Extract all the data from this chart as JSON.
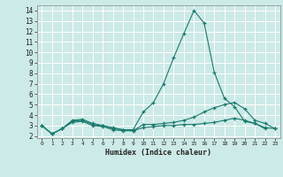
{
  "xlabel": "Humidex (Indice chaleur)",
  "ylabel": "",
  "xlim": [
    -0.5,
    23.5
  ],
  "ylim": [
    1.8,
    14.5
  ],
  "bg_color": "#cceae7",
  "grid_color": "#ffffff",
  "line_color": "#1a7a6e",
  "lines": [
    {
      "x": [
        0,
        1,
        2,
        3,
        4,
        5,
        6,
        7,
        8,
        9,
        10,
        11,
        12,
        13,
        14,
        15,
        16,
        17,
        18,
        19,
        20,
        21,
        22
      ],
      "y": [
        3.0,
        2.2,
        2.7,
        3.5,
        3.6,
        3.2,
        3.0,
        2.8,
        2.6,
        2.6,
        4.3,
        5.2,
        7.0,
        9.5,
        11.8,
        14.0,
        12.8,
        8.1,
        5.6,
        4.8,
        3.4,
        3.2,
        2.7
      ]
    },
    {
      "x": [
        0,
        1,
        2,
        3,
        4,
        5,
        6,
        7,
        8,
        9,
        10,
        11,
        12,
        13,
        14,
        15,
        16,
        17,
        18,
        19,
        20,
        21,
        22,
        23
      ],
      "y": [
        3.0,
        2.2,
        2.7,
        3.4,
        3.5,
        3.1,
        3.0,
        2.7,
        2.6,
        2.5,
        3.1,
        3.1,
        3.2,
        3.3,
        3.5,
        3.8,
        4.3,
        4.7,
        5.0,
        5.2,
        4.6,
        3.5,
        3.2,
        2.7
      ]
    },
    {
      "x": [
        0,
        1,
        2,
        3,
        4,
        5,
        6,
        7,
        8,
        9,
        10,
        11,
        12,
        13,
        14,
        15,
        16,
        17,
        18,
        19,
        20,
        21,
        22,
        23
      ],
      "y": [
        3.0,
        2.2,
        2.7,
        3.3,
        3.4,
        3.0,
        2.9,
        2.6,
        2.5,
        2.5,
        2.8,
        2.9,
        3.0,
        3.0,
        3.1,
        3.1,
        3.2,
        3.3,
        3.5,
        3.7,
        3.5,
        3.2,
        2.8,
        2.7
      ]
    }
  ],
  "yticks": [
    2,
    3,
    4,
    5,
    6,
    7,
    8,
    9,
    10,
    11,
    12,
    13,
    14
  ],
  "xticks": [
    0,
    1,
    2,
    3,
    4,
    5,
    6,
    7,
    8,
    9,
    10,
    11,
    12,
    13,
    14,
    15,
    16,
    17,
    18,
    19,
    20,
    21,
    22,
    23
  ],
  "xtick_labels": [
    "0",
    "1",
    "2",
    "3",
    "4",
    "5",
    "6",
    "7",
    "8",
    "9",
    "10",
    "11",
    "12",
    "13",
    "14",
    "15",
    "16",
    "17",
    "18",
    "19",
    "20",
    "21",
    "22",
    "23"
  ]
}
